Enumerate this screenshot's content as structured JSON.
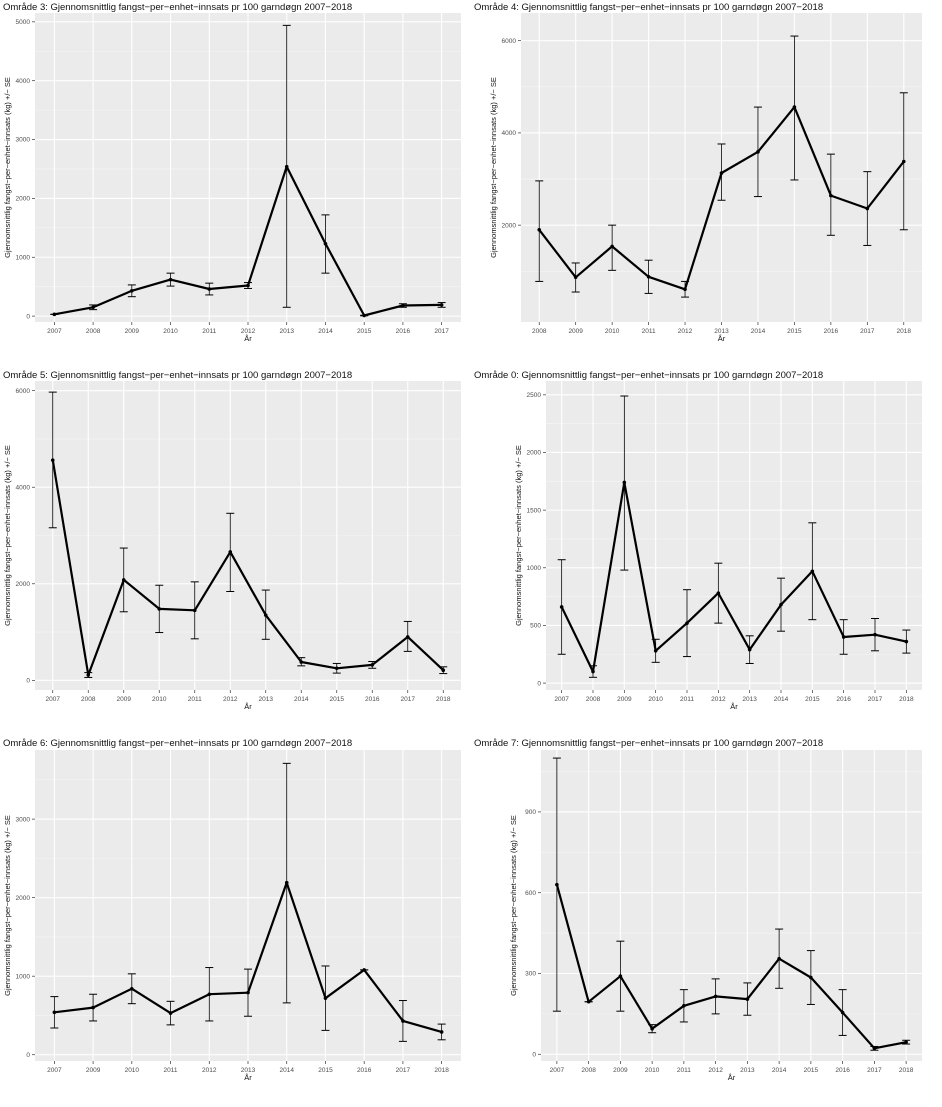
{
  "chart_data": [
    {
      "type": "line",
      "title": "Område 3: Gjennomsnittlig fangst−per−enhet−innsats pr 100 garndøgn 2007−2018",
      "xlabel": "År",
      "ylabel": "Gjennomsnittlig fangst−per−enhet−innsats (kg) +/− SE",
      "x": [
        "2007",
        "2008",
        "2009",
        "2010",
        "2011",
        "2012",
        "2013",
        "2014",
        "2015",
        "2016",
        "2017"
      ],
      "y_ticks": [
        0,
        1000,
        2000,
        3000,
        4000,
        5000
      ],
      "y_tick_labels": [
        "0",
        "1000",
        "2000",
        "3000",
        "4000",
        "5000"
      ],
      "ylim": [
        -100,
        5150
      ],
      "grid": true,
      "series": [
        {
          "values": [
            30,
            150,
            430,
            620,
            460,
            520,
            2540,
            1230,
            10,
            180,
            190
          ],
          "lower": [
            30,
            110,
            330,
            510,
            360,
            470,
            150,
            730,
            5,
            150,
            150
          ],
          "upper": [
            30,
            190,
            530,
            730,
            560,
            570,
            4940,
            1720,
            15,
            210,
            230
          ]
        }
      ]
    },
    {
      "type": "line",
      "title": "Område 4: Gjennomsnittlig fangst−per−enhet−innsats pr 100 garndøgn 2007−2018",
      "xlabel": "År",
      "ylabel": "Gjennomsnittlig fangst−per−enhet−innsats (kg) +/− SE",
      "x": [
        "2008",
        "2009",
        "2010",
        "2011",
        "2012",
        "2013",
        "2014",
        "2015",
        "2016",
        "2017",
        "2018"
      ],
      "y_ticks": [
        2000,
        4000,
        6000
      ],
      "y_tick_labels": [
        "2000",
        "4000",
        "6000"
      ],
      "ylim": [
        -100,
        6600
      ],
      "grid": true,
      "series": [
        {
          "values": [
            1900,
            870,
            1540,
            880,
            610,
            3130,
            3590,
            4560,
            2640,
            2360,
            3380
          ],
          "lower": [
            780,
            550,
            1020,
            520,
            440,
            2540,
            2620,
            2980,
            1780,
            1560,
            1900
          ],
          "upper": [
            2960,
            1180,
            2000,
            1240,
            780,
            3760,
            4560,
            6100,
            3540,
            3160,
            4870
          ]
        }
      ]
    },
    {
      "type": "line",
      "title": "Område 5: Gjennomsnittlig fangst−per−enhet−innsats pr 100 garndøgn 2007−2018",
      "xlabel": "År",
      "ylabel": "Gjennomsnittlig fangst−per−enhet−innsats (kg) +/− SE",
      "x": [
        "2007",
        "2008",
        "2009",
        "2010",
        "2011",
        "2012",
        "2013",
        "2014",
        "2015",
        "2016",
        "2017",
        "2018"
      ],
      "y_ticks": [
        0,
        2000,
        4000,
        6000
      ],
      "y_tick_labels": [
        "0",
        "2000",
        "4000",
        "6000"
      ],
      "ylim": [
        -200,
        6200
      ],
      "grid": true,
      "series": [
        {
          "values": [
            4560,
            110,
            2080,
            1480,
            1450,
            2660,
            1350,
            380,
            250,
            320,
            900,
            210
          ],
          "lower": [
            3160,
            60,
            1420,
            990,
            860,
            1840,
            850,
            300,
            150,
            250,
            600,
            140
          ],
          "upper": [
            5970,
            160,
            2740,
            1970,
            2040,
            3460,
            1870,
            470,
            350,
            390,
            1220,
            280
          ]
        }
      ]
    },
    {
      "type": "line",
      "title": "Område 0: Gjennomsnittlig fangst−per−enhet−innsats pr 100 garndøgn 2007−2018",
      "xlabel": "År",
      "ylabel": "Gjennomsnittlig fangst−per−enhet−innsats (kg) +/− SE",
      "x": [
        "2007",
        "2008",
        "2009",
        "2010",
        "2011",
        "2012",
        "2013",
        "2014",
        "2015",
        "2016",
        "2017",
        "2018"
      ],
      "y_ticks": [
        0,
        500,
        1000,
        1500,
        2000,
        2500
      ],
      "y_tick_labels": [
        "0",
        "500",
        "1000",
        "1500",
        "2000",
        "2500"
      ],
      "ylim": [
        -60,
        2620
      ],
      "grid": true,
      "series": [
        {
          "values": [
            660,
            100,
            1740,
            280,
            520,
            780,
            290,
            680,
            970,
            400,
            420,
            360
          ],
          "lower": [
            250,
            50,
            980,
            180,
            230,
            520,
            170,
            450,
            550,
            250,
            280,
            260
          ],
          "upper": [
            1070,
            150,
            2490,
            380,
            810,
            1040,
            410,
            910,
            1390,
            550,
            560,
            460
          ]
        }
      ]
    },
    {
      "type": "line",
      "title": "Område 6: Gjennomsnittlig fangst−per−enhet−innsats pr 100 garndøgn 2007−2018",
      "xlabel": "År",
      "ylabel": "Gjennomsnittlig fangst−per−enhet−innsats (kg) +/− SE",
      "x": [
        "2007",
        "2009",
        "2010",
        "2011",
        "2012",
        "2013",
        "2014",
        "2015",
        "2016",
        "2017",
        "2018"
      ],
      "y_ticks": [
        0,
        1000,
        2000,
        3000
      ],
      "y_tick_labels": [
        "0",
        "1000",
        "2000",
        "3000"
      ],
      "ylim": [
        -80,
        3880
      ],
      "grid": true,
      "series": [
        {
          "values": [
            540,
            600,
            840,
            530,
            770,
            790,
            2190,
            720,
            1080,
            430,
            290
          ],
          "lower": [
            340,
            430,
            650,
            380,
            430,
            490,
            660,
            310,
            1080,
            170,
            190
          ],
          "upper": [
            740,
            770,
            1030,
            680,
            1110,
            1090,
            3710,
            1130,
            1080,
            690,
            390
          ]
        }
      ]
    },
    {
      "type": "line",
      "title": "Område 7: Gjennomsnittlig fangst−per−enhet−innsats pr 100 garndøgn 2007−2018",
      "xlabel": "År",
      "ylabel": "Gjennomsnittlig fangst−per−enhet−innsats (kg) +/− SE",
      "x": [
        "2007",
        "2008",
        "2009",
        "2010",
        "2011",
        "2012",
        "2013",
        "2014",
        "2015",
        "2016",
        "2017",
        "2018"
      ],
      "y_ticks": [
        0,
        300,
        600,
        900
      ],
      "y_tick_labels": [
        "0",
        "300",
        "600",
        "900"
      ],
      "ylim": [
        -25,
        1130
      ],
      "grid": true,
      "series": [
        {
          "values": [
            630,
            195,
            290,
            95,
            180,
            215,
            205,
            355,
            285,
            155,
            22,
            45
          ],
          "lower": [
            160,
            195,
            160,
            80,
            120,
            150,
            145,
            245,
            185,
            70,
            15,
            38
          ],
          "upper": [
            1100,
            195,
            420,
            110,
            240,
            280,
            265,
            465,
            385,
            240,
            29,
            52
          ]
        }
      ]
    }
  ]
}
